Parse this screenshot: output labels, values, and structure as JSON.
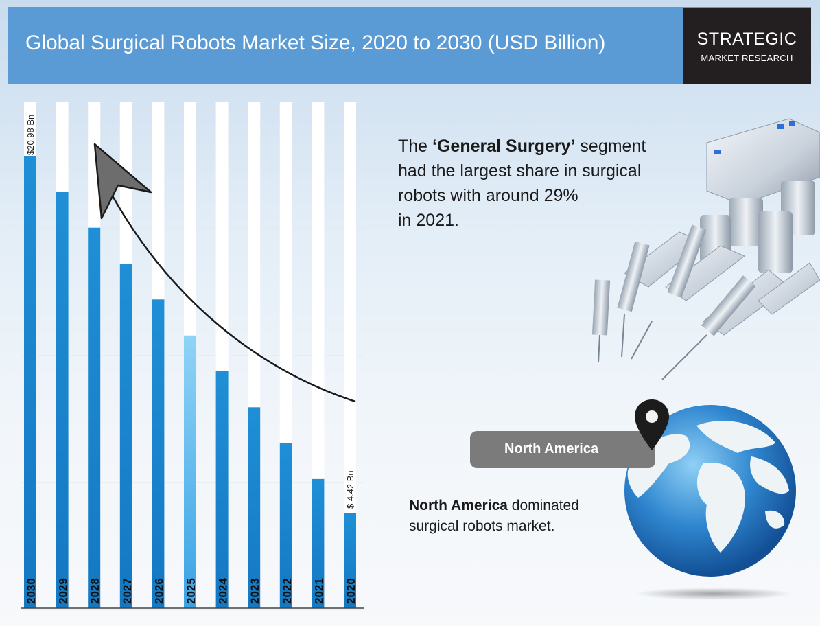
{
  "header": {
    "title": "Global Surgical Robots Market  Size, 2020 to 2030 (USD Billion)",
    "logo_line1": "STRATEGIC",
    "logo_line2": "MARKET RESEARCH"
  },
  "segment_note": {
    "prefix": "The ",
    "highlight": "‘General Surgery’",
    "suffix_line1": " segment",
    "line2": "had the largest share in surgical",
    "line3": "robots with around 29%",
    "line4": "in 2021."
  },
  "region": {
    "pill_label": "North America",
    "note_bold": "North America",
    "note_rest_1": " dominated",
    "note_rest_2": "surgical robots market."
  },
  "colors": {
    "header_bg": "#5b9bd5",
    "logo_bg": "#231f20",
    "bar_blue": "#1f8fd6",
    "bar_light": "#8fd3f7",
    "pill_bg": "#7c7b7c"
  },
  "chart_data": {
    "type": "bar",
    "orientation": "vertical",
    "categories": [
      "2030",
      "2029",
      "2028",
      "2027",
      "2026",
      "2025",
      "2024",
      "2023",
      "2022",
      "2021",
      "2020"
    ],
    "values": [
      20.98,
      19.31,
      17.65,
      15.98,
      14.32,
      12.65,
      10.99,
      9.32,
      7.66,
      5.99,
      4.42
    ],
    "data_labels": {
      "2030": "$20.98 Bn",
      "2020": "$ 4.42 Bn"
    },
    "title": "",
    "xlabel": "",
    "ylabel": "",
    "ylim": [
      0,
      23.5
    ],
    "grid": true,
    "trend_arrow": true
  }
}
